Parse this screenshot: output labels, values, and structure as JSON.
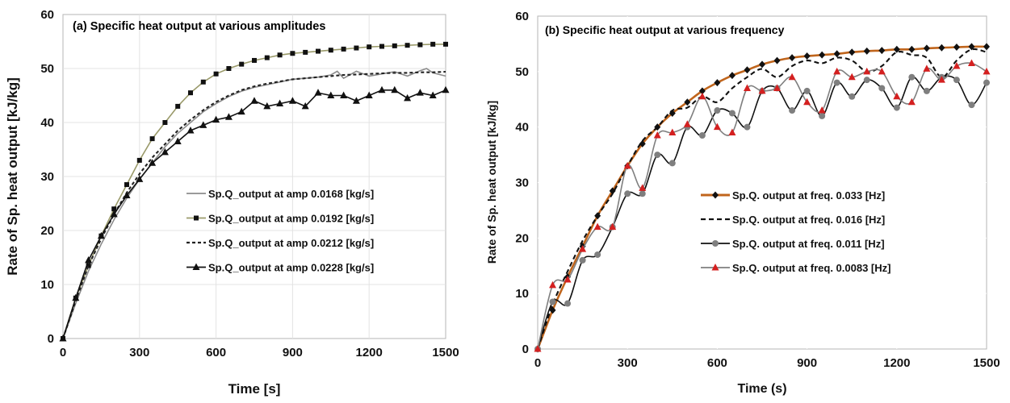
{
  "chart_data": [
    {
      "type": "line",
      "title": "(a) Specific heat output at various amplitudes",
      "xlabel": "Time [s]",
      "ylabel": "Rate of Sp. heat output [kJ/kg]",
      "xlim": [
        0,
        1500
      ],
      "ylim": [
        0,
        60
      ],
      "xticks": [
        0,
        300,
        600,
        900,
        1200,
        1500
      ],
      "yticks": [
        0,
        10,
        20,
        30,
        40,
        50,
        60
      ],
      "legend_position": "center-right",
      "series": [
        {
          "name": "Sp.Q_output at amp 0.0168 [kg/s]",
          "color": "#8c8c8c",
          "marker": "none",
          "dash": "solid",
          "x": [
            0,
            50,
            100,
            150,
            200,
            250,
            300,
            350,
            400,
            450,
            500,
            550,
            600,
            650,
            700,
            750,
            800,
            850,
            900,
            950,
            1000,
            1050,
            1075,
            1100,
            1150,
            1200,
            1250,
            1300,
            1350,
            1400,
            1425,
            1450,
            1500
          ],
          "values": [
            0,
            6.5,
            12.5,
            17.5,
            22,
            26,
            29.5,
            32.5,
            35.5,
            38,
            40,
            42,
            43.5,
            44.8,
            45.8,
            46.5,
            47,
            47.5,
            48,
            48.2,
            48.4,
            48.8,
            49.5,
            48.2,
            49.5,
            48.6,
            49,
            49.4,
            48.6,
            49.6,
            50,
            49.2,
            48.6
          ]
        },
        {
          "name": "Sp.Q_output at amp 0.0192 [kg/s]",
          "color": "#9a9a6a",
          "marker": "square",
          "dash": "solid",
          "x": [
            0,
            50,
            100,
            150,
            200,
            250,
            300,
            350,
            400,
            450,
            500,
            550,
            600,
            650,
            700,
            750,
            800,
            850,
            900,
            950,
            1000,
            1050,
            1100,
            1150,
            1200,
            1250,
            1300,
            1350,
            1400,
            1450,
            1500
          ],
          "values": [
            0,
            7.5,
            13.5,
            19,
            24,
            28.5,
            33,
            37,
            40,
            43,
            45.5,
            47.5,
            49,
            50,
            50.8,
            51.5,
            52,
            52.5,
            52.8,
            53,
            53.2,
            53.4,
            53.6,
            53.8,
            54,
            54.1,
            54.2,
            54.3,
            54.4,
            54.5,
            54.5
          ]
        },
        {
          "name": "Sp.Q_output at amp 0.0212 [kg/s]",
          "color": "#222222",
          "marker": "none",
          "dash": "dashed",
          "x": [
            0,
            50,
            100,
            150,
            200,
            250,
            300,
            350,
            400,
            450,
            500,
            550,
            600,
            650,
            700,
            750,
            800,
            850,
            900,
            950,
            1000,
            1050,
            1100,
            1150,
            1200,
            1250,
            1300,
            1350,
            1400,
            1450,
            1500
          ],
          "values": [
            0,
            7,
            13.5,
            18.5,
            23,
            27,
            30.5,
            33.5,
            36,
            38.5,
            40.5,
            42.3,
            43.8,
            45,
            46,
            46.7,
            47.2,
            47.6,
            48,
            48.2,
            48.4,
            48.6,
            48.8,
            48.9,
            49,
            49.1,
            49.2,
            49.2,
            49.3,
            49.3,
            49.4
          ]
        },
        {
          "name": "Sp.Q_output at amp 0.0228 [kg/s]",
          "color": "#111111",
          "marker": "triangle",
          "dash": "solid",
          "x": [
            0,
            50,
            100,
            150,
            200,
            250,
            300,
            350,
            400,
            450,
            500,
            550,
            600,
            650,
            700,
            750,
            800,
            850,
            900,
            950,
            1000,
            1050,
            1100,
            1150,
            1200,
            1250,
            1300,
            1350,
            1400,
            1450,
            1500
          ],
          "values": [
            0,
            7.5,
            14.5,
            19,
            23,
            26.5,
            29.5,
            32.5,
            34.5,
            36.5,
            38.5,
            39.5,
            40.5,
            41,
            42,
            44,
            43,
            43.5,
            44,
            43,
            45.5,
            45,
            45,
            44,
            45,
            46,
            46,
            44.5,
            45.5,
            45,
            46
          ]
        }
      ]
    },
    {
      "type": "line",
      "title": "(b) Specific heat output at various frequency",
      "xlabel": "Time (s)",
      "ylabel": "Rate of Sp. heat output [kJ/kg]",
      "xlim": [
        0,
        1500
      ],
      "ylim": [
        0,
        60
      ],
      "xticks": [
        0,
        300,
        600,
        900,
        1200,
        1500
      ],
      "yticks": [
        0,
        10,
        20,
        30,
        40,
        50,
        60
      ],
      "legend_position": "center-right",
      "series": [
        {
          "name": "Sp.Q. output at freq. 0.033 [Hz]",
          "color": "#c0651c",
          "marker": "diamond",
          "marker_color": "#111111",
          "dash": "solid",
          "x": [
            0,
            50,
            100,
            150,
            200,
            250,
            300,
            350,
            400,
            450,
            500,
            550,
            600,
            650,
            700,
            750,
            800,
            850,
            900,
            950,
            1000,
            1050,
            1100,
            1150,
            1200,
            1250,
            1300,
            1350,
            1400,
            1450,
            1500
          ],
          "values": [
            0,
            7,
            13,
            18.5,
            24,
            28.5,
            33,
            37,
            40,
            42.5,
            44.5,
            46.5,
            48,
            49.3,
            50.3,
            51.3,
            52,
            52.5,
            52.8,
            53,
            53.2,
            53.5,
            53.7,
            53.8,
            54,
            54,
            54.2,
            54.3,
            54.4,
            54.5,
            54.5
          ]
        },
        {
          "name": "Sp.Q. output at freq. 0.016 [Hz]",
          "color": "#111111",
          "marker": "none",
          "dash": "dashed",
          "x": [
            0,
            50,
            100,
            150,
            200,
            250,
            300,
            350,
            400,
            450,
            500,
            550,
            600,
            650,
            700,
            750,
            800,
            850,
            900,
            950,
            1000,
            1050,
            1100,
            1150,
            1200,
            1250,
            1300,
            1350,
            1400,
            1450,
            1500
          ],
          "values": [
            0,
            8,
            14,
            19.5,
            24,
            28,
            33,
            37.5,
            40,
            43,
            43.5,
            45.5,
            44.5,
            47,
            49,
            50.5,
            49,
            51,
            52,
            51.5,
            52.5,
            52,
            50,
            51,
            53.5,
            53,
            52.5,
            49,
            52,
            54,
            53.5
          ]
        },
        {
          "name": "Sp.Q. output at freq. 0.011 [Hz]",
          "color": "#111111",
          "marker": "circle",
          "marker_color": "#7f7f7f",
          "dash": "solid",
          "x": [
            0,
            50,
            100,
            150,
            200,
            250,
            300,
            350,
            400,
            450,
            500,
            550,
            600,
            650,
            700,
            750,
            800,
            850,
            900,
            950,
            1000,
            1050,
            1100,
            1150,
            1200,
            1250,
            1300,
            1350,
            1400,
            1450,
            1500
          ],
          "values": [
            0,
            8.5,
            8.2,
            16,
            17,
            22,
            28,
            28,
            35,
            33.5,
            40,
            38.5,
            43,
            42.5,
            40,
            46.5,
            47,
            43,
            46.5,
            42,
            48,
            45.5,
            48.5,
            47,
            43.5,
            49,
            46.5,
            49,
            48.5,
            44,
            48
          ]
        },
        {
          "name": "Sp.Q. output at freq. 0.0083 [Hz]",
          "color": "#7f7f7f",
          "marker": "triangle",
          "marker_color": "#d42020",
          "dash": "solid",
          "x": [
            0,
            50,
            100,
            150,
            200,
            250,
            300,
            350,
            400,
            450,
            500,
            550,
            600,
            650,
            700,
            750,
            800,
            850,
            900,
            950,
            1000,
            1050,
            1100,
            1150,
            1200,
            1250,
            1300,
            1350,
            1400,
            1450,
            1500
          ],
          "values": [
            0,
            11.5,
            12.5,
            18,
            22,
            22,
            33,
            29,
            38.5,
            39,
            40.5,
            45.5,
            40,
            39,
            47,
            46.5,
            47,
            49,
            44.5,
            43,
            50,
            49,
            50,
            50,
            45.5,
            44.5,
            50.5,
            48.5,
            51,
            51.5,
            50
          ]
        }
      ]
    }
  ]
}
